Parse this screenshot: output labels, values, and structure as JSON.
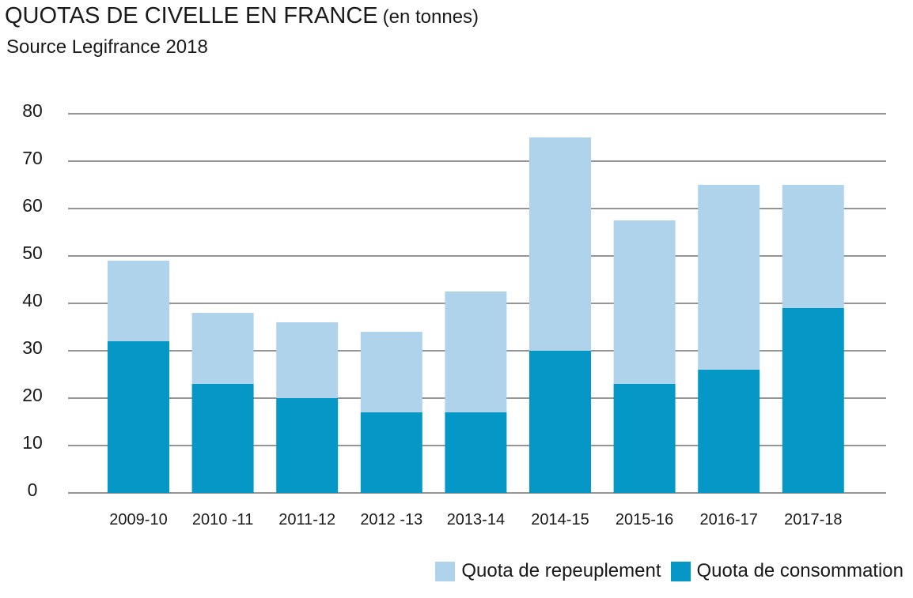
{
  "chart_data": {
    "type": "bar",
    "stacked": true,
    "title": "QUOTAS DE CIVELLE EN FRANCE",
    "title_unit": "(en tonnes)",
    "subtitle": "Source Legifrance 2018",
    "categories": [
      "2009-10",
      "2010 -11",
      "2011-12",
      "2012 -13",
      "2013-14",
      "2014-15",
      "2015-16",
      "2016-17",
      "2017-18"
    ],
    "series": [
      {
        "name": "Quota de consommation",
        "color": "#0598c6",
        "values": [
          32,
          23,
          20,
          17,
          17,
          30,
          23,
          26,
          39
        ]
      },
      {
        "name": "Quota de repeuplement",
        "color": "#aed3ea",
        "values": [
          17,
          15,
          16,
          17,
          25.5,
          45,
          34.5,
          39,
          26
        ]
      }
    ],
    "ylim": [
      0,
      80
    ],
    "yticks": [
      0,
      10,
      20,
      30,
      40,
      50,
      60,
      70,
      80
    ],
    "grid": true,
    "legend_position": "bottom-right",
    "legend_order": [
      "Quota de repeuplement",
      "Quota de consommation"
    ]
  }
}
